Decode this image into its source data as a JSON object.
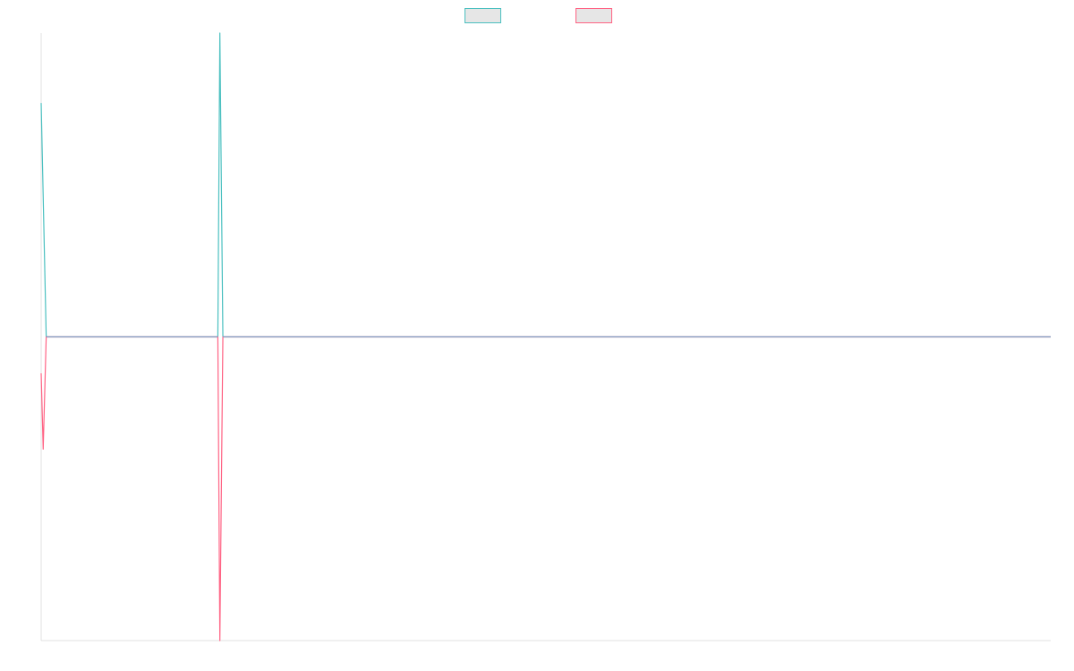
{
  "chart_data": {
    "type": "line",
    "title": "",
    "xlabel": "",
    "ylabel": "",
    "grid": false,
    "legend": {
      "placement": "top-center",
      "entries": [
        {
          "label": "",
          "color": "#4bc0c0"
        },
        {
          "label": "",
          "color": "#ff6384"
        }
      ]
    },
    "xlim": [
      0,
      1000
    ],
    "ylim": [
      -100,
      100
    ],
    "series": [
      {
        "color": "#4bc0c0",
        "points": [
          [
            0,
            77
          ],
          [
            5,
            0
          ],
          [
            175,
            0
          ],
          [
            177,
            100
          ],
          [
            180,
            0
          ],
          [
            1000,
            0
          ]
        ]
      },
      {
        "color": "#ff6384",
        "points": [
          [
            0,
            -12
          ],
          [
            2,
            -37
          ],
          [
            5,
            0
          ],
          [
            175,
            0
          ],
          [
            177,
            -100
          ],
          [
            180,
            0
          ],
          [
            1000,
            0
          ]
        ]
      }
    ]
  }
}
